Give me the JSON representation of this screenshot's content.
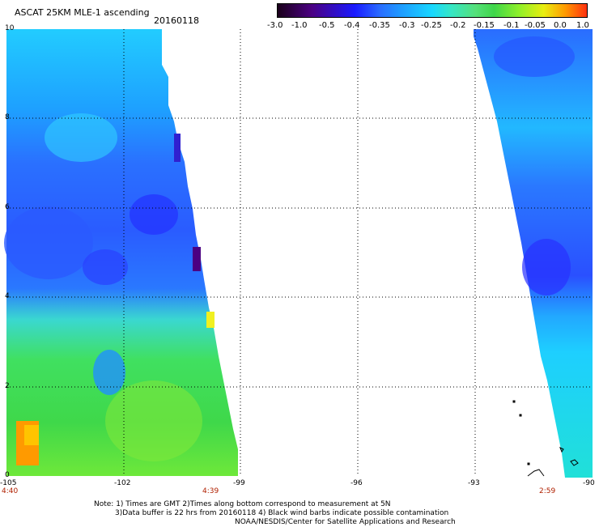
{
  "header": {
    "title": "ASCAT 25KM MLE-1 ascending",
    "date": "20160118"
  },
  "colorbar": {
    "labels": [
      "-3.0",
      "-1.0",
      "-0.5",
      "-0.4",
      "-0.35",
      "-0.3",
      "-0.25",
      "-0.2",
      "-0.15",
      "-0.1",
      "-0.05",
      "0.0",
      "1.0"
    ],
    "colors": [
      "#1a001a",
      "#4b0082",
      "#1a1aff",
      "#2a6cff",
      "#1e9cff",
      "#18d8ff",
      "#35e6c6",
      "#55e07a",
      "#3fd64a",
      "#8ef02a",
      "#e8ee10",
      "#ff9a00",
      "#ff3010"
    ]
  },
  "axes": {
    "y_ticks": [
      "10",
      "8",
      "6",
      "4",
      "2",
      "0"
    ],
    "x_ticks": [
      "-105",
      "-102",
      "-99",
      "-96",
      "-93",
      "-90"
    ]
  },
  "times": {
    "left": "4:40",
    "mid": "4:39",
    "right": "2:59"
  },
  "notes": {
    "line1": "Note: 1) Times are GMT 2)Times along bottom correspond to measurement at 5N",
    "line2": "3)Data buffer is 22 hrs from 20160118 4) Black wind barbs indicate possible contamination",
    "line3": "NOAA/NESDIS/Center for Satellite Applications and Research"
  }
}
